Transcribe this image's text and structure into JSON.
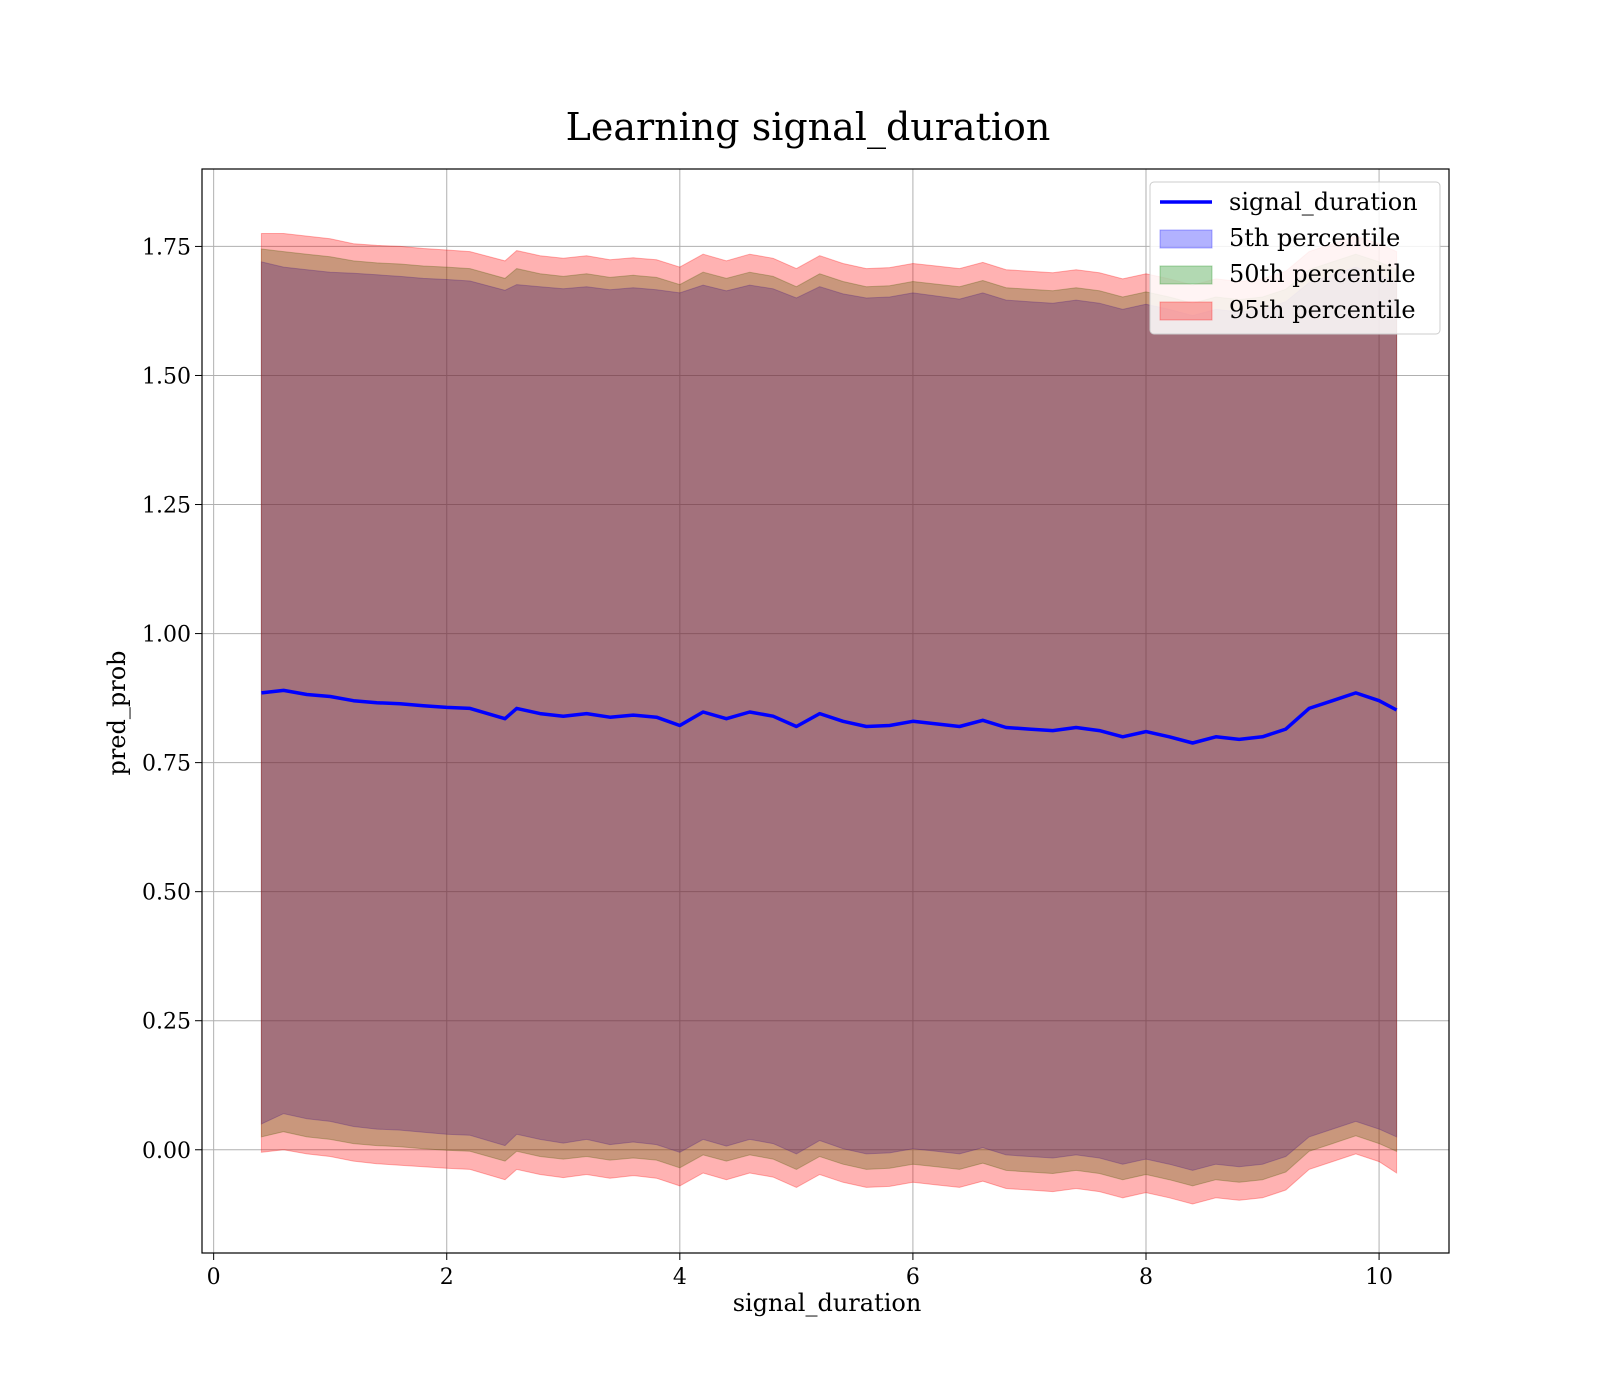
{
  "chart_data": {
    "type": "line",
    "title": "Learning signal_duration",
    "xlabel": "signal_duration",
    "ylabel": "pred_prob",
    "xlim": [
      -0.1,
      10.6
    ],
    "ylim": [
      -0.2,
      1.9
    ],
    "xticks": [
      0,
      2,
      4,
      6,
      8,
      10
    ],
    "xtick_labels": [
      "0",
      "2",
      "4",
      "6",
      "8",
      "10"
    ],
    "yticks": [
      0.0,
      0.25,
      0.5,
      0.75,
      1.0,
      1.25,
      1.5,
      1.75
    ],
    "ytick_labels": [
      "0.00",
      "0.25",
      "0.50",
      "0.75",
      "1.00",
      "1.25",
      "1.50",
      "1.75"
    ],
    "grid": true,
    "legend_position": "top-right",
    "x": [
      0.41,
      0.6,
      0.8,
      1.0,
      1.2,
      1.4,
      1.6,
      1.8,
      2.0,
      2.2,
      2.5,
      2.6,
      2.8,
      3.0,
      3.2,
      3.4,
      3.6,
      3.8,
      4.0,
      4.2,
      4.4,
      4.6,
      4.8,
      5.0,
      5.2,
      5.4,
      5.6,
      5.8,
      6.0,
      6.2,
      6.4,
      6.6,
      6.8,
      7.0,
      7.2,
      7.4,
      7.6,
      7.8,
      8.0,
      8.2,
      8.4,
      8.6,
      8.8,
      9.0,
      9.2,
      9.4,
      9.6,
      9.8,
      10.0,
      10.15
    ],
    "series": [
      {
        "name": "signal_duration",
        "color": "#0000ff",
        "values": [
          0.885,
          0.89,
          0.882,
          0.878,
          0.87,
          0.866,
          0.864,
          0.86,
          0.857,
          0.855,
          0.835,
          0.855,
          0.845,
          0.84,
          0.845,
          0.838,
          0.842,
          0.838,
          0.822,
          0.848,
          0.835,
          0.848,
          0.84,
          0.82,
          0.845,
          0.83,
          0.82,
          0.822,
          0.83,
          0.825,
          0.82,
          0.832,
          0.818,
          0.815,
          0.812,
          0.818,
          0.812,
          0.8,
          0.81,
          0.8,
          0.788,
          0.8,
          0.795,
          0.8,
          0.815,
          0.855,
          0.87,
          0.885,
          0.87,
          0.852
        ]
      },
      {
        "name": "5th percentile",
        "color": "#0000ff",
        "upper": [
          1.72,
          1.71,
          1.705,
          1.7,
          1.698,
          1.695,
          1.692,
          1.688,
          1.686,
          1.683,
          1.665,
          1.676,
          1.672,
          1.668,
          1.672,
          1.666,
          1.67,
          1.666,
          1.66,
          1.675,
          1.664,
          1.675,
          1.668,
          1.65,
          1.672,
          1.658,
          1.65,
          1.652,
          1.66,
          1.654,
          1.648,
          1.66,
          1.646,
          1.643,
          1.64,
          1.646,
          1.64,
          1.628,
          1.638,
          1.628,
          1.616,
          1.628,
          1.623,
          1.628,
          1.643,
          1.68,
          1.695,
          1.71,
          1.695,
          1.68
        ],
        "lower": [
          0.05,
          0.07,
          0.06,
          0.055,
          0.045,
          0.04,
          0.038,
          0.034,
          0.03,
          0.028,
          0.008,
          0.03,
          0.02,
          0.013,
          0.02,
          0.01,
          0.015,
          0.01,
          -0.005,
          0.02,
          0.007,
          0.02,
          0.012,
          -0.008,
          0.018,
          0.002,
          -0.008,
          -0.006,
          0.002,
          -0.003,
          -0.008,
          0.004,
          -0.01,
          -0.013,
          -0.016,
          -0.01,
          -0.016,
          -0.028,
          -0.018,
          -0.028,
          -0.04,
          -0.028,
          -0.033,
          -0.028,
          -0.013,
          0.025,
          0.04,
          0.055,
          0.04,
          0.025
        ]
      },
      {
        "name": "50th percentile",
        "color": "#008000",
        "upper": [
          1.745,
          1.74,
          1.735,
          1.73,
          1.722,
          1.718,
          1.716,
          1.712,
          1.71,
          1.707,
          1.688,
          1.707,
          1.697,
          1.692,
          1.697,
          1.69,
          1.694,
          1.69,
          1.676,
          1.7,
          1.688,
          1.7,
          1.692,
          1.672,
          1.697,
          1.682,
          1.672,
          1.674,
          1.682,
          1.677,
          1.672,
          1.684,
          1.67,
          1.667,
          1.664,
          1.67,
          1.664,
          1.652,
          1.662,
          1.652,
          1.64,
          1.652,
          1.647,
          1.652,
          1.667,
          1.705,
          1.72,
          1.735,
          1.72,
          1.705
        ],
        "lower": [
          0.025,
          0.035,
          0.025,
          0.02,
          0.012,
          0.008,
          0.006,
          0.002,
          -0.001,
          -0.003,
          -0.022,
          -0.003,
          -0.013,
          -0.018,
          -0.013,
          -0.02,
          -0.016,
          -0.02,
          -0.035,
          -0.01,
          -0.022,
          -0.01,
          -0.018,
          -0.038,
          -0.013,
          -0.028,
          -0.038,
          -0.036,
          -0.028,
          -0.033,
          -0.038,
          -0.026,
          -0.04,
          -0.043,
          -0.046,
          -0.04,
          -0.046,
          -0.058,
          -0.048,
          -0.058,
          -0.07,
          -0.058,
          -0.063,
          -0.058,
          -0.043,
          -0.003,
          0.012,
          0.027,
          0.012,
          -0.003
        ]
      },
      {
        "name": "95th percentile",
        "color": "#ff0000",
        "upper": [
          1.775,
          1.775,
          1.77,
          1.765,
          1.755,
          1.752,
          1.75,
          1.746,
          1.743,
          1.74,
          1.722,
          1.742,
          1.732,
          1.727,
          1.732,
          1.724,
          1.728,
          1.724,
          1.71,
          1.735,
          1.722,
          1.735,
          1.727,
          1.707,
          1.732,
          1.717,
          1.707,
          1.709,
          1.717,
          1.712,
          1.707,
          1.719,
          1.705,
          1.702,
          1.699,
          1.705,
          1.699,
          1.687,
          1.697,
          1.687,
          1.675,
          1.687,
          1.682,
          1.687,
          1.702,
          1.74,
          1.755,
          1.77,
          1.755,
          1.74
        ],
        "lower": [
          -0.005,
          0.0,
          -0.008,
          -0.013,
          -0.022,
          -0.027,
          -0.03,
          -0.033,
          -0.036,
          -0.038,
          -0.058,
          -0.038,
          -0.048,
          -0.054,
          -0.048,
          -0.055,
          -0.05,
          -0.055,
          -0.07,
          -0.045,
          -0.058,
          -0.045,
          -0.053,
          -0.073,
          -0.048,
          -0.063,
          -0.073,
          -0.071,
          -0.063,
          -0.068,
          -0.073,
          -0.061,
          -0.075,
          -0.078,
          -0.081,
          -0.075,
          -0.081,
          -0.093,
          -0.083,
          -0.093,
          -0.105,
          -0.093,
          -0.098,
          -0.093,
          -0.078,
          -0.038,
          -0.023,
          -0.008,
          -0.023,
          -0.045
        ]
      }
    ],
    "legend": [
      {
        "label": "signal_duration",
        "kind": "line",
        "color": "#0000ff"
      },
      {
        "label": "5th percentile",
        "kind": "patch",
        "color": "#0000ff"
      },
      {
        "label": "50th percentile",
        "kind": "patch",
        "color": "#008000"
      },
      {
        "label": "95th percentile",
        "kind": "patch",
        "color": "#ff0000"
      }
    ]
  }
}
